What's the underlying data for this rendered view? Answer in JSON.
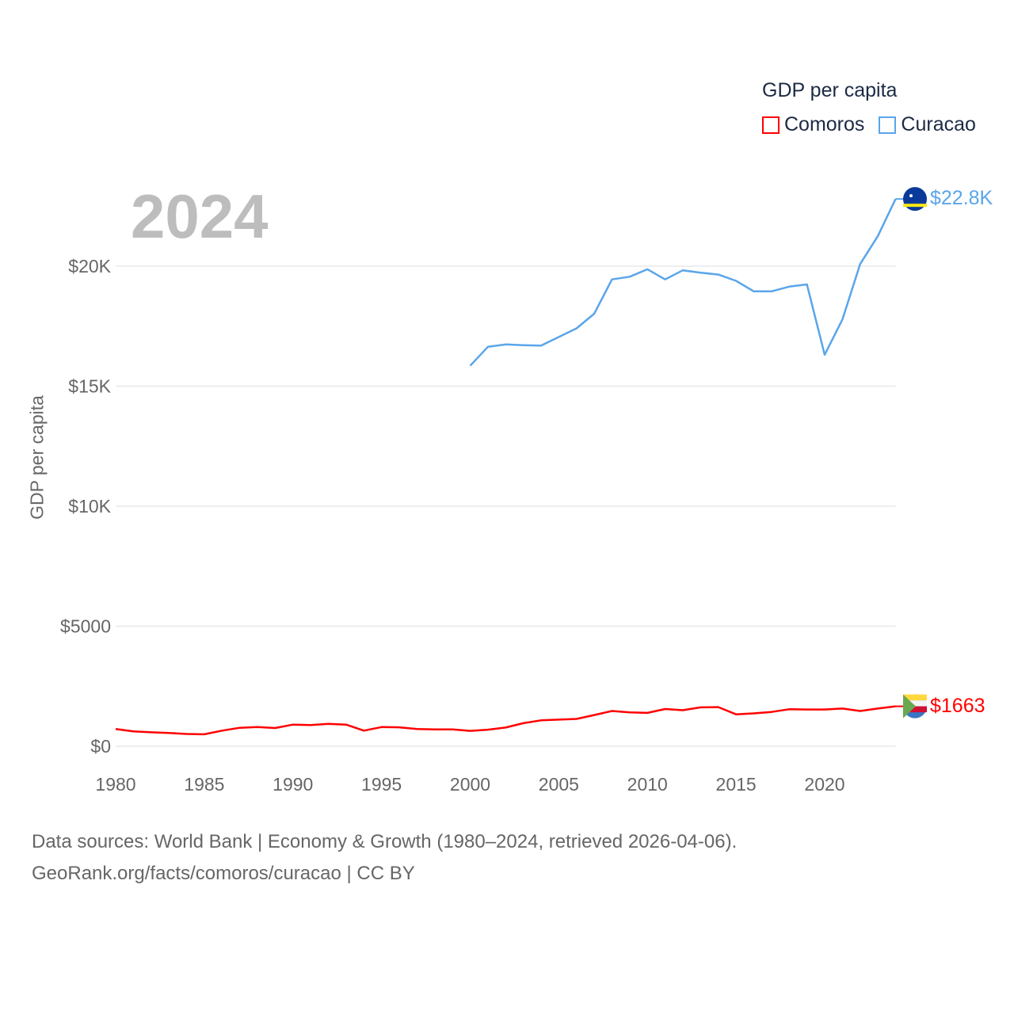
{
  "chart_data": {
    "type": "line",
    "title": "GDP per capita",
    "ylabel": "GDP per capita",
    "xlabel": "",
    "year_label": "2024",
    "xlim": [
      1980,
      2024
    ],
    "ylim": [
      0,
      23000
    ],
    "x_ticks": [
      1980,
      1985,
      1990,
      1995,
      2000,
      2005,
      2010,
      2015,
      2020
    ],
    "y_ticks": [
      {
        "v": 0,
        "label": "$0"
      },
      {
        "v": 5000,
        "label": "$5000"
      },
      {
        "v": 10000,
        "label": "$10K"
      },
      {
        "v": 15000,
        "label": "$15K"
      },
      {
        "v": 20000,
        "label": "$20K"
      }
    ],
    "legend_placement": "top-right",
    "grid": true,
    "series": [
      {
        "name": "Comoros",
        "color": "#ff0000",
        "end_label": "$1663",
        "start_year": 1980,
        "values": [
          720,
          620,
          580,
          550,
          510,
          500,
          650,
          770,
          800,
          760,
          900,
          880,
          930,
          900,
          650,
          800,
          790,
          720,
          700,
          700,
          640,
          690,
          780,
          960,
          1080,
          1110,
          1140,
          1300,
          1470,
          1410,
          1390,
          1550,
          1500,
          1620,
          1630,
          1330,
          1370,
          1430,
          1540,
          1530,
          1530,
          1570,
          1470,
          1570,
          1663
        ]
      },
      {
        "name": "Curacao",
        "color": "#5aa5ea",
        "end_label": "$22.8K",
        "start_year": 2000,
        "values": [
          15850,
          16640,
          16740,
          16710,
          16690,
          17050,
          17410,
          18020,
          19450,
          19560,
          19870,
          19450,
          19830,
          19730,
          19650,
          19390,
          18950,
          18950,
          19150,
          19240,
          16310,
          17780,
          20090,
          21250,
          22800
        ]
      }
    ]
  },
  "footer": {
    "line1": "Data sources: World Bank | Economy & Growth (1980–2024, retrieved 2026-04-06).",
    "line2": "GeoRank.org/facts/comoros/curacao | CC BY"
  }
}
